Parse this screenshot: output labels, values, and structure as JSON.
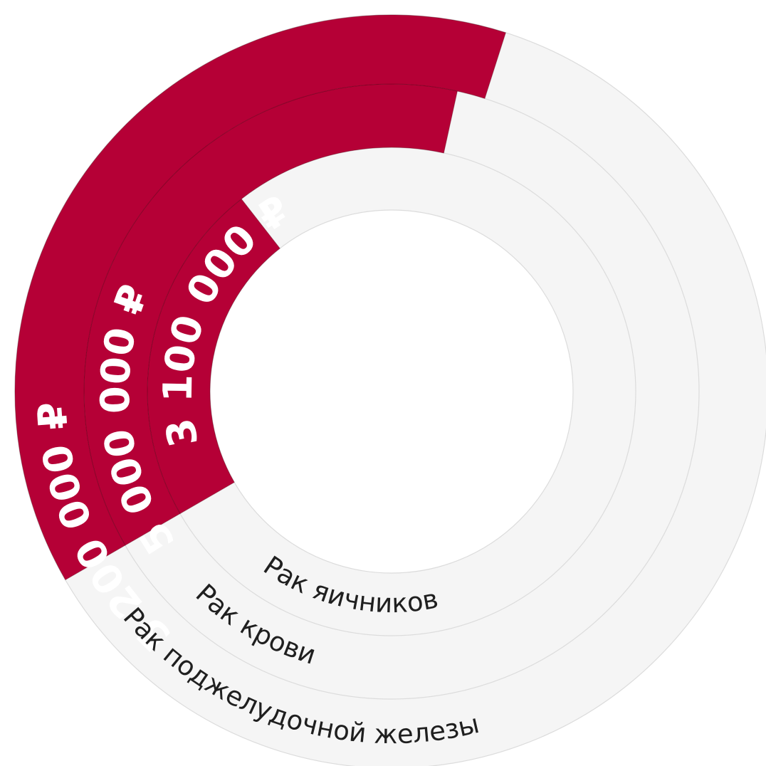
{
  "chart_data": {
    "type": "radial-bar",
    "series": [
      {
        "name": "Рак яичников",
        "value": 3100000,
        "value_label": "3 100 000 ₽"
      },
      {
        "name": "Рак крови",
        "value": 5000000,
        "value_label": "5 000 000 ₽"
      },
      {
        "name": "Рак поджелудочной железы",
        "value": 5200000,
        "value_label": "5 200 000 ₽"
      }
    ],
    "max": 13600000,
    "colors": {
      "bar": "#b50036",
      "track": "#f5f5f5",
      "track_stroke": "#dcdcdc"
    }
  }
}
